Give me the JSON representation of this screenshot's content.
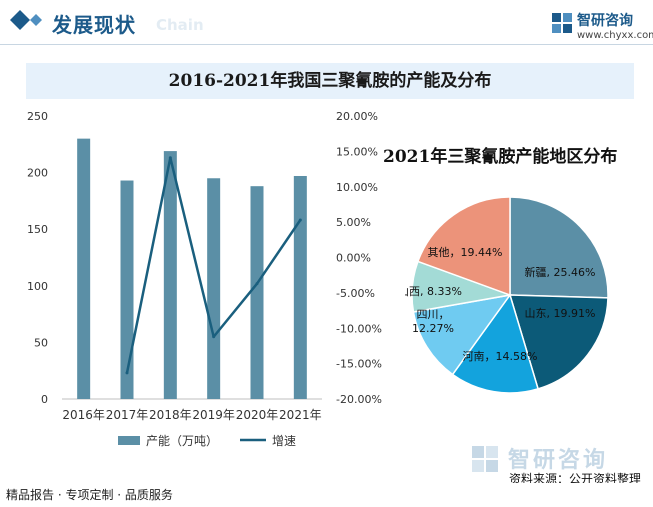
{
  "header": {
    "title": "发展现状",
    "subtitle": "Chain"
  },
  "brand": {
    "name": "智研咨询",
    "url": "www.chyxx.com"
  },
  "main_title": "2016-2021年我国三聚氰胺的产能及分布",
  "pie_title": "2021年三聚氰胺产能地区分布",
  "watermark": "智研咨询",
  "source": "资料来源：公开资料整理",
  "footer": "精品报告 · 专项定制 · 品质服务",
  "colors": {
    "bar": "#5b8fa6",
    "line": "#1a5f7e",
    "accent": "#1c5a8a",
    "title_band": "#e6f1fb"
  },
  "chart_data": [
    {
      "type": "bar",
      "categories": [
        "2016年",
        "2017年",
        "2018年",
        "2019年",
        "2020年",
        "2021年"
      ],
      "series": [
        {
          "name": "产能（万吨）",
          "type": "bar",
          "axis": "left",
          "values": [
            230,
            193,
            219,
            195,
            188,
            197
          ]
        },
        {
          "name": "增速",
          "type": "line",
          "axis": "right",
          "values": [
            null,
            -16.3,
            14.1,
            -11.2,
            -3.7,
            5.3
          ]
        }
      ],
      "y_left": {
        "min": 0,
        "max": 250,
        "ticks": [
          "0",
          "50",
          "100",
          "150",
          "200",
          "250"
        ]
      },
      "y_right": {
        "min": -20,
        "max": 20,
        "ticks": [
          "-20.00%",
          "-15.00%",
          "-10.00%",
          "-5.00%",
          "0.00%",
          "5.00%",
          "10.00%",
          "15.00%",
          "20.00%"
        ]
      },
      "grid": false,
      "legend_position": "bottom"
    },
    {
      "type": "pie",
      "title": "2021年三聚氰胺产能地区分布",
      "slices": [
        {
          "label": "新疆",
          "value": 25.46,
          "text": "新疆, 25.46%",
          "color": "#5b8fa6"
        },
        {
          "label": "山东",
          "value": 19.91,
          "text": "山东, 19.91%",
          "color": "#0c5a78"
        },
        {
          "label": "河南",
          "value": 14.58,
          "text": "河南，14.58%",
          "color": "#13a3dd"
        },
        {
          "label": "四川",
          "value": 12.27,
          "text_line1": "四川，",
          "text_line2": "12.27%",
          "color": "#6fcbf1"
        },
        {
          "label": "山西",
          "value": 8.33,
          "text": "山西, 8.33%",
          "color": "#a3dbd6"
        },
        {
          "label": "其他",
          "value": 19.44,
          "text": "其他，19.44%",
          "color": "#ec937a"
        }
      ]
    }
  ]
}
